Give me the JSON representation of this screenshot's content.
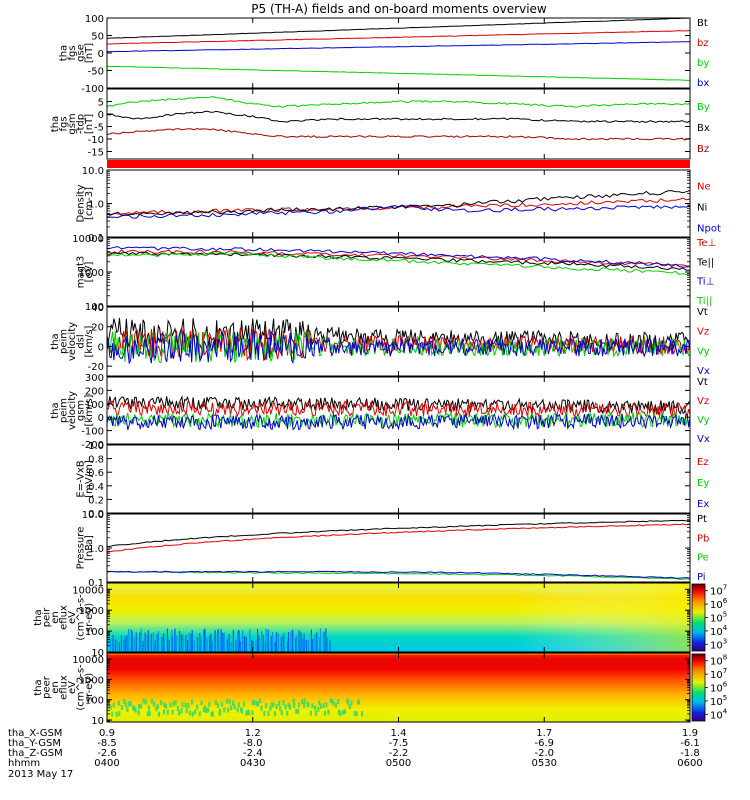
{
  "chart_data": {
    "type": "line",
    "title": "P5 (TH-A) fields and on-board moments overview",
    "panels": [
      {
        "id": "fgs-gse",
        "type": "line",
        "ylabel": [
          "tha",
          "fgs",
          "gse",
          "[nT]"
        ],
        "ylim": [
          -100,
          100
        ],
        "scale": "linear",
        "ytick_labels": [
          "100",
          "50",
          "0",
          "-50",
          "-100"
        ],
        "ytick_values": [
          100,
          50,
          0,
          -50,
          -100
        ],
        "series": [
          {
            "name": "Bt",
            "color": "#000000",
            "x": [
              0,
              1
            ],
            "values": [
              42,
              100
            ]
          },
          {
            "name": "bz",
            "color": "#e00000",
            "x": [
              0,
              1
            ],
            "values": [
              26,
              64
            ]
          },
          {
            "name": "by",
            "color": "#00d000",
            "x": [
              0,
              1
            ],
            "values": [
              -38,
              -78
            ]
          },
          {
            "name": "bx",
            "color": "#0000d0",
            "x": [
              0,
              1
            ],
            "values": [
              4,
              32
            ]
          }
        ]
      },
      {
        "id": "fgs-gsm",
        "type": "line",
        "ylabel": [
          "tha",
          "fgs",
          "gsm",
          "-tdp",
          "[nT]"
        ],
        "ylim": [
          -18,
          10
        ],
        "scale": "linear",
        "ytick_labels": [
          "5",
          "0",
          "-5",
          "-10",
          "-15"
        ],
        "ytick_values": [
          5,
          0,
          -5,
          -10,
          -15
        ],
        "series": [
          {
            "name": "By",
            "color": "#00d000",
            "x": [
              0,
              0.05,
              0.12,
              0.18,
              0.25,
              0.3,
              0.4,
              0.5,
              0.6,
              0.7,
              0.8,
              0.9,
              1
            ],
            "values": [
              3,
              5,
              6,
              7,
              4,
              3,
              4,
              5,
              5,
              4,
              3,
              4,
              4
            ]
          },
          {
            "name": "Bx",
            "color": "#000000",
            "x": [
              0,
              0.05,
              0.12,
              0.18,
              0.25,
              0.3,
              0.4,
              0.5,
              0.6,
              0.7,
              0.8,
              0.9,
              1
            ],
            "values": [
              0,
              -2,
              0,
              1,
              -1,
              -3,
              -2,
              -2,
              -2,
              -2,
              -3,
              -3,
              -3
            ]
          },
          {
            "name": "Bz",
            "color": "#a00000",
            "x": [
              0,
              0.05,
              0.12,
              0.18,
              0.25,
              0.3,
              0.4,
              0.5,
              0.6,
              0.7,
              0.8,
              0.9,
              1
            ],
            "values": [
              -8,
              -7,
              -6,
              -6,
              -8,
              -9,
              -9,
              -9,
              -9,
              -9,
              -10,
              -10,
              -10
            ]
          }
        ]
      },
      {
        "id": "density",
        "type": "line",
        "ylabel": [
          "Density",
          "[cm-3]"
        ],
        "ylim": [
          0.1,
          10
        ],
        "scale": "log",
        "ytick_labels": [
          "10.0",
          "1.0",
          "0.1"
        ],
        "ytick_values": [
          10,
          1,
          0.1
        ],
        "series": [
          {
            "name": "Ne",
            "color": "#e00000",
            "x": [
              0,
              0.2,
              0.4,
              0.6,
              0.8,
              1
            ],
            "values": [
              0.5,
              0.6,
              0.7,
              0.8,
              1.0,
              1.3
            ]
          },
          {
            "name": "Ni",
            "color": "#000000",
            "x": [
              0,
              0.2,
              0.4,
              0.6,
              0.8,
              1
            ],
            "values": [
              0.5,
              0.55,
              0.7,
              0.9,
              1.5,
              2.3
            ]
          },
          {
            "name": "Npot",
            "color": "#0000d0",
            "x": [
              0,
              0.2,
              0.4,
              0.5,
              0.6,
              0.8,
              1
            ],
            "values": [
              0.4,
              0.45,
              0.6,
              0.8,
              0.6,
              0.7,
              0.8
            ]
          }
        ]
      },
      {
        "id": "temperature",
        "type": "line",
        "ylabel": [
          "magt3",
          "[eV]"
        ],
        "ylim": [
          100,
          10000
        ],
        "scale": "log",
        "ytick_labels": [
          "10000",
          "1000",
          "100"
        ],
        "ytick_values": [
          10000,
          1000,
          100
        ],
        "series": [
          {
            "name": "Te⊥",
            "color": "#e00000",
            "x": [
              0,
              0.2,
              0.4,
              0.6,
              0.8,
              1
            ],
            "values": [
              4000,
              3800,
              3300,
              2700,
              2000,
              1600
            ]
          },
          {
            "name": "Te||",
            "color": "#000000",
            "x": [
              0,
              0.2,
              0.4,
              0.6,
              0.8,
              1
            ],
            "values": [
              3500,
              3300,
              2800,
              2200,
              1700,
              1200
            ]
          },
          {
            "name": "Ti⊥",
            "color": "#0000d0",
            "x": [
              0,
              0.2,
              0.4,
              0.6,
              0.8,
              1
            ],
            "values": [
              5000,
              4800,
              4000,
              3000,
              2200,
              1500
            ]
          },
          {
            "name": "Ti||",
            "color": "#00d000",
            "x": [
              0,
              0.2,
              0.4,
              0.6,
              0.8,
              1
            ],
            "values": [
              3000,
              3500,
              2500,
              1800,
              1300,
              900
            ]
          }
        ]
      },
      {
        "id": "velocity-dsl",
        "type": "line",
        "ylabel": [
          "tha",
          "peim",
          "velocity",
          "dsl",
          "[km/s]"
        ],
        "ylim": [
          -30,
          40
        ],
        "scale": "linear",
        "ytick_labels": [
          "40",
          "20",
          "0",
          "-20"
        ],
        "ytick_values": [
          40,
          20,
          0,
          -20
        ],
        "series": [
          {
            "name": "Vt",
            "color": "#000000",
            "x": [
              0,
              0.25,
              0.5,
              0.75,
              1
            ],
            "values": [
              14,
              13,
              9,
              7,
              5
            ]
          },
          {
            "name": "Vz",
            "color": "#e00000",
            "x": [
              0,
              1
            ],
            "values": [
              3,
              1
            ]
          },
          {
            "name": "Vy",
            "color": "#00d000",
            "x": [
              0,
              1
            ],
            "values": [
              0,
              -1
            ]
          },
          {
            "name": "Vx",
            "color": "#0000d0",
            "x": [
              0,
              1
            ],
            "values": [
              -1,
              -1
            ]
          }
        ]
      },
      {
        "id": "velocity-gsm",
        "type": "line",
        "ylabel": [
          "tha",
          "peim",
          "velocity",
          "gsm",
          "[km/s]"
        ],
        "ylim": [
          -200,
          300
        ],
        "scale": "linear",
        "ytick_labels": [
          "300",
          "200",
          "100",
          "0",
          "-100",
          "-200"
        ],
        "ytick_values": [
          300,
          200,
          100,
          0,
          -100,
          -200
        ],
        "series": [
          {
            "name": "Vt",
            "color": "#000000",
            "x": [
              0,
              0.5,
              1
            ],
            "values": [
              110,
              95,
              75
            ]
          },
          {
            "name": "Vz",
            "color": "#e00000",
            "x": [
              0,
              1
            ],
            "values": [
              70,
              50
            ]
          },
          {
            "name": "Vy",
            "color": "#00d000",
            "x": [
              0,
              1
            ],
            "values": [
              -20,
              -20
            ]
          },
          {
            "name": "Vx",
            "color": "#0000d0",
            "x": [
              0,
              1
            ],
            "values": [
              -40,
              -30
            ]
          }
        ]
      },
      {
        "id": "efield",
        "type": "line",
        "ylabel": [
          "E=-VxB",
          "[mV/m]"
        ],
        "ylim": [
          0,
          1
        ],
        "scale": "linear",
        "ytick_labels": [
          "1.0",
          "0.8",
          "0.6",
          "0.4",
          "0.2",
          "0.0"
        ],
        "ytick_values": [
          1,
          0.8,
          0.6,
          0.4,
          0.2,
          0
        ],
        "series": [
          {
            "name": "Ez",
            "color": "#e00000",
            "x": [],
            "values": []
          },
          {
            "name": "Ey",
            "color": "#00d000",
            "x": [],
            "values": []
          },
          {
            "name": "Ex",
            "color": "#0000d0",
            "x": [],
            "values": []
          }
        ]
      },
      {
        "id": "pressure",
        "type": "line",
        "ylabel": [
          "Pressure",
          "[nPa]"
        ],
        "ylim": [
          0.1,
          10
        ],
        "scale": "log",
        "ytick_labels": [
          "10.0",
          "1.0",
          "0.1"
        ],
        "ytick_values": [
          10,
          1,
          0.1
        ],
        "series": [
          {
            "name": "Pt",
            "color": "#000000",
            "x": [
              0,
              1
            ],
            "values": [
              1.1,
              6.5
            ]
          },
          {
            "name": "Pb",
            "color": "#e00000",
            "x": [
              0,
              1
            ],
            "values": [
              0.75,
              5.0
            ]
          },
          {
            "name": "Pe",
            "color": "#00d000",
            "x": [
              0,
              0.4,
              0.6,
              0.8,
              1
            ],
            "values": [
              0.2,
              0.18,
              0.17,
              0.15,
              0.12
            ]
          },
          {
            "name": "Pi",
            "color": "#0000d0",
            "x": [
              0,
              0.4,
              0.6,
              0.8,
              1
            ],
            "values": [
              0.2,
              0.2,
              0.19,
              0.16,
              0.13
            ]
          }
        ]
      },
      {
        "id": "ion-spectrogram",
        "type": "heatmap",
        "ylabel": [
          "tha",
          "peir",
          "en",
          "eflux",
          "eV",
          "(cm^2-s-",
          "sr-eV)"
        ],
        "ylim": [
          10,
          20000
        ],
        "scale": "log",
        "ytick_labels": [
          "10000",
          "1000",
          "100",
          "10"
        ],
        "ytick_values": [
          10000,
          1000,
          100,
          10
        ],
        "colorbar": {
          "scale": "log",
          "range_exp": [
            2.5,
            7.5
          ],
          "tick_exps": [
            7,
            6,
            5,
            4,
            3
          ]
        }
      },
      {
        "id": "electron-spectrogram",
        "type": "heatmap",
        "ylabel": [
          "tha",
          "peer",
          "en",
          "eflux",
          "eV",
          "(cm^2-s-",
          "sr-eV)"
        ],
        "ylim": [
          8,
          20000
        ],
        "scale": "log",
        "ytick_labels": [
          "10000",
          "1000",
          "100",
          "10"
        ],
        "ytick_values": [
          10000,
          1000,
          100,
          10
        ],
        "colorbar": {
          "scale": "log",
          "range_exp": [
            3.5,
            8.5
          ],
          "tick_exps": [
            8,
            7,
            6,
            5,
            4
          ]
        }
      }
    ],
    "x_axis": {
      "row_labels": [
        "tha_X-GSM",
        "tha_Y-GSM",
        "tha_Z-GSM",
        "hhmm"
      ],
      "ticks": [
        {
          "values": [
            "0.9",
            "-8.5",
            "-2.6",
            "0400"
          ]
        },
        {
          "values": [
            "1.2",
            "-8.0",
            "-2.4",
            "0430"
          ]
        },
        {
          "values": [
            "1.4",
            "-7.5",
            "-2.2",
            "0500"
          ]
        },
        {
          "values": [
            "1.7",
            "-6.9",
            "-2.0",
            "0530"
          ]
        },
        {
          "values": [
            "1.9",
            "-6.1",
            "-1.8",
            "0600"
          ]
        }
      ],
      "date": "2013 May 17"
    }
  }
}
